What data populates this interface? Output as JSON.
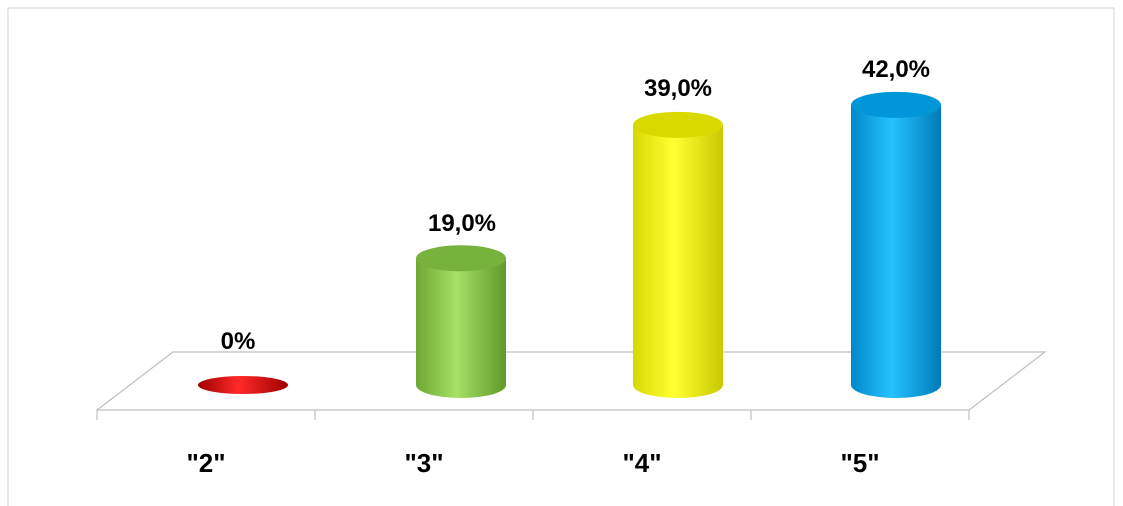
{
  "chart_data": {
    "type": "bar",
    "style": "3d-cylinder",
    "categories": [
      "\"2\"",
      "\"3\"",
      "\"4\"",
      "\"5\""
    ],
    "values": [
      0,
      19.0,
      39.0,
      42.0
    ],
    "data_labels": [
      "0%",
      "19,0%",
      "39,0%",
      "42,0%"
    ],
    "unit": "%",
    "colors": [
      "#e00000",
      "#8fd14f",
      "#ffff00",
      "#00b0f0"
    ],
    "ylim": [
      0,
      50
    ],
    "grid": false,
    "legend": "none",
    "title": "",
    "xlabel": "",
    "ylabel": ""
  }
}
